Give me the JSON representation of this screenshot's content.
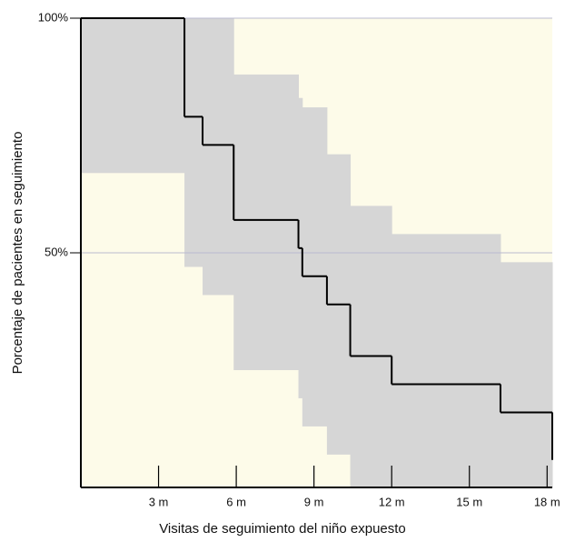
{
  "chart_data": {
    "type": "step",
    "x_label": "Visitas de seguimiento del niño expuesto",
    "y_label": "Porcentaje de pacientes en seguimiento",
    "line": {
      "x": [
        0,
        4.0,
        4.7,
        5.9,
        8.4,
        8.55,
        9.5,
        10.4,
        12.0,
        16.2,
        18.2
      ],
      "values": [
        100,
        79,
        73,
        57,
        51,
        45,
        39,
        28,
        22,
        16,
        6
      ],
      "color": "#000000"
    },
    "band": {
      "x": [
        0,
        4.0,
        4.7,
        5.9,
        8.4,
        8.55,
        9.5,
        10.4,
        12.0,
        16.2
      ],
      "upper": [
        100,
        100,
        100,
        88,
        83,
        81,
        71,
        60,
        54,
        48
      ],
      "lower": [
        67,
        47,
        41,
        25,
        19,
        13,
        7,
        0,
        0,
        0
      ],
      "color": "#d6d6d6"
    },
    "background": "#fdfbe9",
    "xlim": [
      0,
      18.2
    ],
    "ylim": [
      0,
      100
    ],
    "xticks": [
      {
        "value": 3,
        "label": "3 m"
      },
      {
        "value": 6,
        "label": "6 m"
      },
      {
        "value": 9,
        "label": "9 m"
      },
      {
        "value": 12,
        "label": "12 m"
      },
      {
        "value": 15,
        "label": "15 m"
      },
      {
        "value": 18,
        "label": "18 m"
      }
    ],
    "yticks": [
      {
        "value": 50,
        "label": "50%"
      },
      {
        "value": 100,
        "label": "100%"
      }
    ],
    "grid": true
  }
}
